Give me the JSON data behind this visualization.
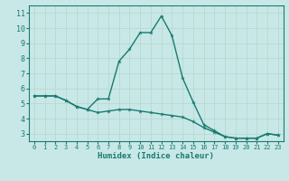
{
  "upper_x": [
    0,
    1,
    2,
    3,
    4,
    5,
    6,
    7,
    8,
    9,
    10,
    11,
    12,
    13,
    14,
    15,
    16,
    17,
    18,
    19,
    20,
    21,
    22,
    23
  ],
  "upper_y": [
    5.5,
    5.5,
    5.5,
    5.2,
    4.8,
    4.6,
    5.3,
    5.3,
    7.8,
    8.6,
    9.7,
    9.7,
    10.8,
    9.5,
    6.7,
    5.1,
    3.6,
    3.2,
    2.8,
    2.7,
    2.7,
    2.7,
    3.0,
    2.9
  ],
  "lower_x": [
    0,
    1,
    2,
    3,
    4,
    5,
    6,
    7,
    8,
    9,
    10,
    11,
    12,
    13,
    14,
    15,
    16,
    17,
    18,
    19,
    20,
    21,
    22,
    23
  ],
  "lower_y": [
    5.5,
    5.5,
    5.5,
    5.2,
    4.8,
    4.6,
    4.4,
    4.5,
    4.6,
    4.6,
    4.5,
    4.4,
    4.3,
    4.2,
    4.1,
    3.8,
    3.4,
    3.1,
    2.8,
    2.7,
    2.7,
    2.7,
    3.0,
    2.9
  ],
  "line_color": "#1a7a6e",
  "bg_color": "#c8e8e8",
  "grid_color": "#b8d8d0",
  "xlabel": "Humidex (Indice chaleur)",
  "xlim": [
    -0.5,
    23.5
  ],
  "ylim": [
    2.5,
    11.5
  ],
  "xticks": [
    0,
    1,
    2,
    3,
    4,
    5,
    6,
    7,
    8,
    9,
    10,
    11,
    12,
    13,
    14,
    15,
    16,
    17,
    18,
    19,
    20,
    21,
    22,
    23
  ],
  "yticks": [
    3,
    4,
    5,
    6,
    7,
    8,
    9,
    10,
    11
  ],
  "marker": "*",
  "markersize": 3.5,
  "linewidth": 1.0,
  "figwidth": 3.2,
  "figheight": 2.0,
  "dpi": 100
}
